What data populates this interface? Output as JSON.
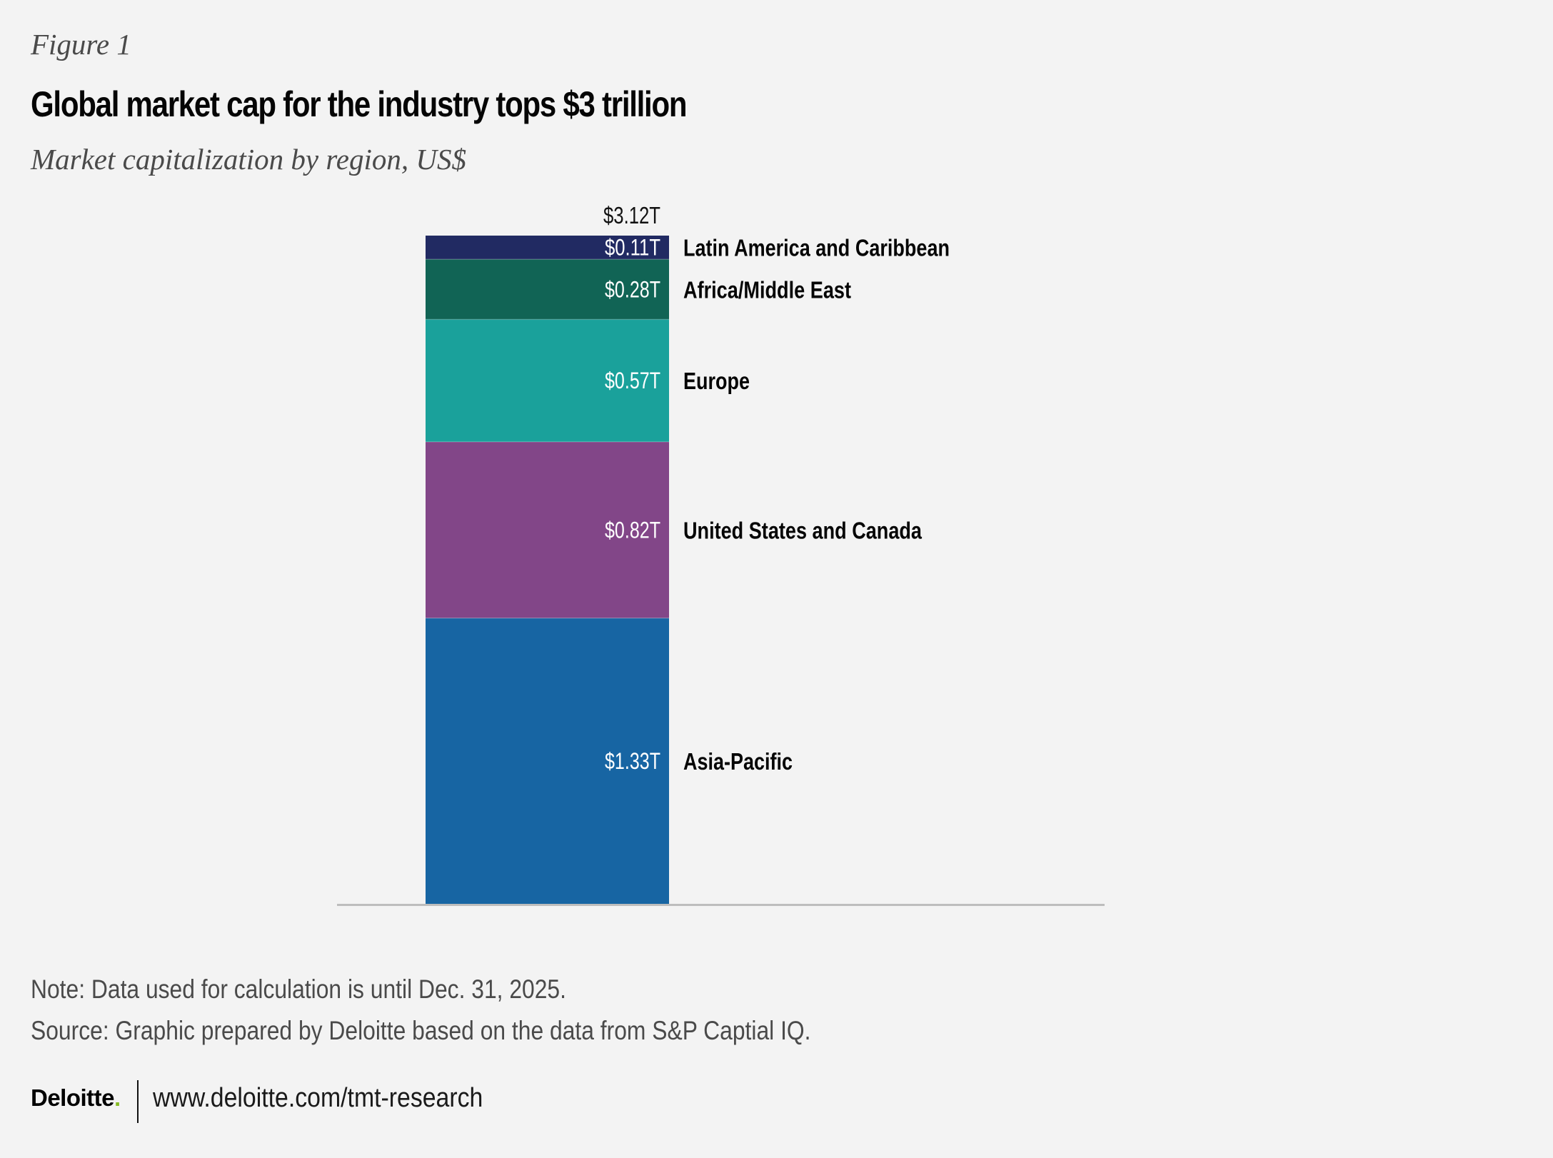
{
  "header": {
    "figure_label": "Figure 1",
    "title": "Global market cap for the industry tops $3 trillion",
    "subtitle": "Market capitalization by region, US$"
  },
  "chart_data": {
    "type": "bar",
    "stacked": true,
    "title": "Global market cap for the industry tops $3 trillion",
    "subtitle": "Market capitalization by region, US$",
    "xlabel": "",
    "ylabel": "",
    "unit": "US$ trillions",
    "ylim": [
      0,
      3.12
    ],
    "grid": false,
    "legend": "direct-labels-right",
    "total": {
      "value": 3.12,
      "label": "$3.12T"
    },
    "categories": [
      "Global"
    ],
    "series": [
      {
        "name": "Asia-Pacific",
        "values": [
          1.33
        ],
        "label": "$1.33T",
        "color": "#1765a3"
      },
      {
        "name": "United States and Canada",
        "values": [
          0.82
        ],
        "label": "$0.82T",
        "color": "#824688"
      },
      {
        "name": "Europe",
        "values": [
          0.57
        ],
        "label": "$0.57T",
        "color": "#1aa19b"
      },
      {
        "name": "Africa/Middle East",
        "values": [
          0.28
        ],
        "label": "$0.28T",
        "color": "#116455"
      },
      {
        "name": "Latin America and Caribbean",
        "values": [
          0.11
        ],
        "label": "$0.11T",
        "color": "#212a62"
      }
    ]
  },
  "notes": {
    "note": "Note: Data used for calculation is until Dec. 31, 2025.",
    "source": "Source: Graphic prepared by Deloitte based on the data from S&P Captial IQ."
  },
  "footer": {
    "logo_text": "Deloitte",
    "logo_dot": ".",
    "logo_dot_color": "#86bc25",
    "url": "www.deloitte.com/tmt-research"
  }
}
